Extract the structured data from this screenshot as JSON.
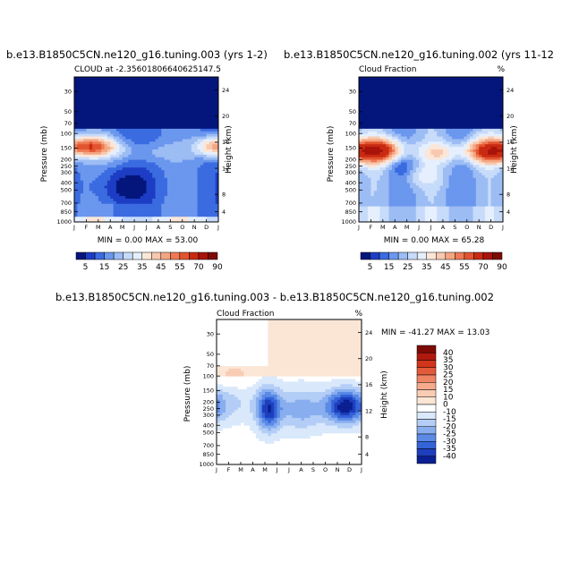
{
  "chart_data": [
    {
      "type": "heatmap",
      "title": "b.e13.B1850C5CN.ne120_g16.tuning.003 (yrs 1-2)",
      "subtitle_left": "CLOUD at -2.35601806640625",
      "subtitle_right": "147.5",
      "ylabel": "Pressure (mb)",
      "ylabel_right": "Height (km)",
      "x_ticks": [
        "J",
        "F",
        "M",
        "A",
        "M",
        "J",
        "J",
        "A",
        "S",
        "O",
        "N",
        "D",
        "J"
      ],
      "y_ticks": [
        "30",
        "50",
        "70",
        "100",
        "150",
        "200",
        "250",
        "300",
        "400",
        "500",
        "700",
        "850",
        "1000"
      ],
      "y_ticks_right": [
        "24",
        "20",
        "16",
        "12",
        "8",
        "4"
      ],
      "min_label": "MIN =    0.00 MAX =   53.00",
      "colorbar_labels": [
        "5",
        "15",
        "25",
        "35",
        "45",
        "55",
        "70",
        "90"
      ],
      "levels": [
        5,
        10,
        15,
        20,
        25,
        30,
        35,
        40,
        45,
        50,
        55,
        60,
        70,
        80,
        90
      ],
      "colors": [
        "#04167c",
        "#1c3dc4",
        "#3b6be0",
        "#6b97ee",
        "#9cbcf4",
        "#c7dbfa",
        "#e5effd",
        "#fbe6d8",
        "#f8c9ae",
        "#f4a682",
        "#ee7a55",
        "#e2542f",
        "#c92a12",
        "#a8140a",
        "#7e0a06"
      ],
      "max_value": 53.0,
      "min_value": 0.0
    },
    {
      "type": "heatmap",
      "title": "b.e13.B1850C5CN.ne120_g16.tuning.002 (yrs 11-12",
      "subtitle_left": "Cloud Fraction",
      "subtitle_right": "%",
      "ylabel": "Pressure (mb)",
      "ylabel_right": "Height (km)",
      "x_ticks": [
        "J",
        "F",
        "M",
        "A",
        "M",
        "J",
        "J",
        "A",
        "S",
        "O",
        "N",
        "D",
        "J"
      ],
      "y_ticks": [
        "30",
        "50",
        "70",
        "100",
        "150",
        "200",
        "250",
        "300",
        "400",
        "500",
        "700",
        "850",
        "1000"
      ],
      "y_ticks_right": [
        "24",
        "20",
        "16",
        "12",
        "8",
        "4"
      ],
      "min_label": "MIN =    0.00 MAX =   65.28",
      "max_value": 65.28,
      "min_value": 0.0
    },
    {
      "type": "heatmap",
      "title": "b.e13.B1850C5CN.ne120_g16.tuning.003 - b.e13.B1850C5CN.ne120_g16.tuning.002",
      "subtitle_left": "Cloud Fraction",
      "subtitle_right": "%",
      "ylabel": "Pressure (mb)",
      "ylabel_right": "Height (km)",
      "x_ticks": [
        "J",
        "F",
        "M",
        "A",
        "M",
        "J",
        "J",
        "A",
        "S",
        "O",
        "N",
        "D",
        "J"
      ],
      "y_ticks": [
        "30",
        "50",
        "70",
        "100",
        "150",
        "200",
        "250",
        "300",
        "400",
        "500",
        "700",
        "850",
        "1000"
      ],
      "y_ticks_right": [
        "24",
        "20",
        "16",
        "12",
        "8",
        "4"
      ],
      "min_label": "MIN = -41.27 MAX =  13.03",
      "colorbar_labels": [
        "40",
        "35",
        "30",
        "25",
        "20",
        "15",
        "10",
        "0",
        "-10",
        "-15",
        "-20",
        "-25",
        "-30",
        "-35",
        "-40"
      ],
      "levels": [
        40,
        35,
        30,
        25,
        20,
        15,
        10,
        0,
        -10,
        -15,
        -20,
        -25,
        -30,
        -35,
        -40
      ],
      "colors": [
        "#7e0a06",
        "#b01a0e",
        "#d1351c",
        "#e35a3a",
        "#ee8463",
        "#f5aa8c",
        "#f9ccb4",
        "#fbe6d6",
        "#ffffff",
        "#d9e8fb",
        "#b3cdf6",
        "#88aeef",
        "#5b8ae6",
        "#3563d8",
        "#1d3fbd",
        "#0a1f91"
      ],
      "max_value": 13.03,
      "min_value": -41.27
    }
  ]
}
